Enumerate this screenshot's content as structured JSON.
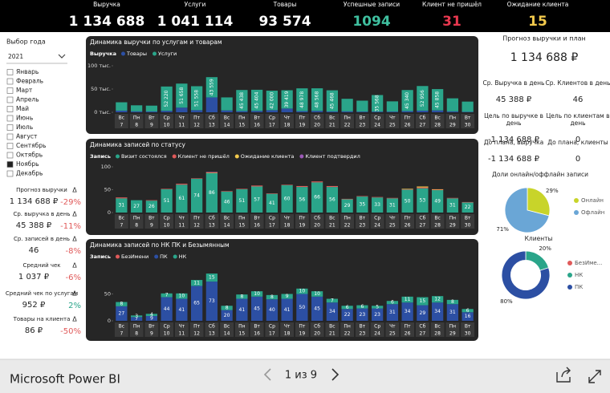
{
  "header": {
    "kpis": [
      {
        "label": "Выручка",
        "value": "1 134 688",
        "color": "#ffffff"
      },
      {
        "label": "Услуги",
        "value": "1 041 114",
        "color": "#ffffff"
      },
      {
        "label": "Товары",
        "value": "93 574",
        "color": "#ffffff"
      },
      {
        "label": "Успешные записи",
        "value": "1094",
        "color": "#3fbf9f"
      },
      {
        "label": "Клиент не пришёл",
        "value": "31",
        "color": "#e8384f"
      },
      {
        "label": "Ожидание клиента",
        "value": "15",
        "color": "#f2c94c"
      }
    ]
  },
  "filters": {
    "year_label": "Выбор года",
    "year": "2021",
    "months": [
      {
        "name": "Январь",
        "checked": false
      },
      {
        "name": "Февраль",
        "checked": false
      },
      {
        "name": "Март",
        "checked": false
      },
      {
        "name": "Апрель",
        "checked": false
      },
      {
        "name": "Май",
        "checked": false
      },
      {
        "name": "Июнь",
        "checked": false
      },
      {
        "name": "Июль",
        "checked": false
      },
      {
        "name": "Август",
        "checked": false
      },
      {
        "name": "Сентябрь",
        "checked": false
      },
      {
        "name": "Октябрь",
        "checked": false
      },
      {
        "name": "Ноябрь",
        "checked": true
      },
      {
        "name": "Декабрь",
        "checked": false
      }
    ]
  },
  "left_metrics": {
    "delta_symbol": "Δ",
    "items": [
      {
        "label": "Прогноз выручки",
        "value": "1 134 688 ₽",
        "delta": "-29%",
        "delta_color": "#e05a5a"
      },
      {
        "label": "Ср. выручка в день",
        "value": "45 388 ₽",
        "delta": "-11%",
        "delta_color": "#e05a5a"
      },
      {
        "label": "Ср. записей в день",
        "value": "46",
        "delta": "-8%",
        "delta_color": "#e05a5a"
      },
      {
        "label": "Средний чек",
        "value": "1 037 ₽",
        "delta": "-6%",
        "delta_color": "#e05a5a"
      },
      {
        "label": "Средний чек по услугам",
        "value": "952 ₽",
        "delta": "2%",
        "delta_color": "#2aa58a"
      },
      {
        "label": "Товары на клиента",
        "value": "86 ₽",
        "delta": "-50%",
        "delta_color": "#e05a5a"
      }
    ]
  },
  "chart_data": [
    {
      "type": "bar",
      "stacked": true,
      "title": "Динамика выручки по услугам и товарам",
      "legend_title": "Выручка",
      "weekdays": [
        "Вс",
        "Пн",
        "Вт",
        "Ср",
        "Чт",
        "Пт",
        "Сб",
        "Вс",
        "Пн",
        "Вт",
        "Ср",
        "Чт",
        "Пт",
        "Сб",
        "Вс",
        "Пн",
        "Вт",
        "Ср",
        "Чт",
        "Пт",
        "Сб",
        "Вс",
        "Пн",
        "Вт"
      ],
      "days": [
        7,
        8,
        9,
        10,
        11,
        12,
        13,
        14,
        15,
        16,
        17,
        18,
        19,
        20,
        21,
        22,
        23,
        24,
        25,
        26,
        27,
        28,
        29,
        30
      ],
      "ylim": [
        0,
        100000
      ],
      "yticks": [
        {
          "value": 0,
          "label": "0 тыс."
        },
        {
          "value": 50000,
          "label": "50 тыс."
        },
        {
          "value": 100000,
          "label": "100 тыс."
        }
      ],
      "series": [
        {
          "name": "Товары",
          "color": "#2c4fa3",
          "values": [
            3500,
            2000,
            1800,
            3200,
            10000,
            4500,
            32000,
            4000,
            2500,
            3000,
            4500,
            8000,
            2500,
            3000,
            1800,
            2000,
            1500,
            1500,
            1500,
            2500,
            3500,
            4000,
            2000,
            1000
          ]
        },
        {
          "name": "Услуги",
          "color": "#2aa58a",
          "values": [
            18000,
            13000,
            12500,
            52220,
            51658,
            51558,
            43559,
            28000,
            45438,
            45404,
            42000,
            39419,
            48978,
            48568,
            45468,
            27000,
            23500,
            35568,
            22000,
            45340,
            52956,
            45858,
            28000,
            22000
          ],
          "value_labels": [
            null,
            null,
            null,
            "52 220",
            "51 658",
            "51 558",
            "43 559",
            null,
            "45 438",
            "45 404",
            "42 000",
            "39 419",
            "48 978",
            "48 568",
            "45 468",
            null,
            null,
            "35 568",
            null,
            "45 340",
            "52 956",
            "45 858",
            null,
            null
          ]
        }
      ]
    },
    {
      "type": "bar",
      "stacked": true,
      "title": "Динамика записей по статусу",
      "legend_title": "Запись",
      "weekdays": [
        "Вс",
        "Пн",
        "Вт",
        "Ср",
        "Чт",
        "Пт",
        "Сб",
        "Вс",
        "Пн",
        "Вт",
        "Ср",
        "Чт",
        "Пт",
        "Сб",
        "Вс",
        "Пн",
        "Вт",
        "Ср",
        "Чт",
        "Пт",
        "Сб",
        "Вс",
        "Пн",
        "Вт"
      ],
      "days": [
        7,
        8,
        9,
        10,
        11,
        12,
        13,
        14,
        15,
        16,
        17,
        18,
        19,
        20,
        21,
        22,
        23,
        24,
        25,
        26,
        27,
        28,
        29,
        30
      ],
      "ylim": [
        0,
        100
      ],
      "yticks": [
        0,
        50,
        100
      ],
      "series": [
        {
          "name": "Визит состоялся",
          "color": "#2aa58a",
          "data_labels": true,
          "values": [
            31,
            27,
            26,
            51,
            61,
            74,
            86,
            46,
            51,
            57,
            41,
            60,
            56,
            66,
            56,
            29,
            35,
            33,
            31,
            50,
            53,
            49,
            31,
            22
          ]
        },
        {
          "name": "Клиент не пришёл",
          "color": "#e05a5a",
          "values": [
            2,
            0,
            1,
            1,
            2,
            1,
            1,
            1,
            1,
            2,
            1,
            1,
            2,
            2,
            2,
            1,
            1,
            1,
            1,
            1,
            2,
            1,
            1,
            1
          ]
        },
        {
          "name": "Ожидание клиента",
          "color": "#f2c94c",
          "values": [
            0,
            0,
            0,
            0,
            0,
            0,
            1,
            0,
            0,
            0,
            0,
            0,
            0,
            0,
            0,
            0,
            0,
            0,
            0,
            1,
            2,
            1,
            0,
            0
          ]
        },
        {
          "name": "Клиент подтвердил",
          "color": "#9b59b6",
          "values": [
            0,
            0,
            0,
            0,
            0,
            0,
            1,
            0,
            0,
            0,
            0,
            0,
            0,
            0,
            0,
            0,
            0,
            0,
            0,
            0,
            0,
            0,
            0,
            0
          ]
        }
      ]
    },
    {
      "type": "bar",
      "stacked": true,
      "title": "Динамика записей по НК ПК и Безымянным",
      "legend_title": "Запись",
      "weekdays": [
        "Вс",
        "Пн",
        "Вт",
        "Ср",
        "Чт",
        "Пт",
        "Сб",
        "Вс",
        "Пн",
        "Вт",
        "Ср",
        "Чт",
        "Пт",
        "Сб",
        "Вс",
        "Пн",
        "Вт",
        "Ср",
        "Чт",
        "Пт",
        "Сб",
        "Вс",
        "Пн",
        "Вт"
      ],
      "days": [
        7,
        8,
        9,
        10,
        11,
        12,
        13,
        14,
        15,
        16,
        17,
        18,
        19,
        20,
        21,
        22,
        23,
        24,
        25,
        26,
        27,
        28,
        29,
        30
      ],
      "ylim": [
        0,
        100
      ],
      "yticks": [
        0,
        50
      ],
      "series": [
        {
          "name": "БезИмени",
          "color": "#e05a5a",
          "values": [
            0,
            0,
            0,
            0,
            0,
            0,
            0,
            0,
            0,
            0,
            0,
            0,
            0,
            0,
            0,
            0,
            0,
            0,
            0,
            0,
            0,
            0,
            0,
            0
          ]
        },
        {
          "name": "ПК",
          "color": "#2c4fa3",
          "data_labels": true,
          "values": [
            27,
            7,
            9,
            44,
            41,
            65,
            73,
            20,
            41,
            45,
            40,
            41,
            50,
            45,
            34,
            22,
            23,
            23,
            31,
            34,
            29,
            34,
            31,
            16
          ]
        },
        {
          "name": "НК",
          "color": "#2aa58a",
          "data_labels": true,
          "values": [
            8,
            3,
            4,
            7,
            10,
            11,
            15,
            8,
            8,
            10,
            8,
            9,
            10,
            10,
            7,
            6,
            6,
            5,
            6,
            11,
            15,
            12,
            8,
            6
          ]
        }
      ]
    },
    {
      "type": "pie",
      "title": "Доли онлайн/оффлайн записи",
      "categories": [
        "Онлайн",
        "Офлайн"
      ],
      "values": [
        29,
        71
      ],
      "value_labels": [
        "29%",
        "71%"
      ],
      "colors": [
        "#c8d42a",
        "#6aa6d6"
      ]
    },
    {
      "type": "pie",
      "hole": 0.62,
      "title": "Клиенты",
      "categories": [
        "БезИме...",
        "НК",
        "ПК"
      ],
      "values": [
        0,
        20,
        80
      ],
      "value_labels": [
        null,
        "20%",
        "80%"
      ],
      "colors": [
        "#e05a5a",
        "#2aa58a",
        "#2c4fa3"
      ]
    }
  ],
  "plan": {
    "title": "Прогноз выручки и план",
    "value": "1 134 688 ₽",
    "items": [
      {
        "label": [
          "Ср. Выручка в день"
        ],
        "value": "45 388 ₽"
      },
      {
        "label": [
          "Ср. Клиентов в день"
        ],
        "value": "46"
      },
      {
        "label": [
          "Цель по выручке в",
          "день"
        ],
        "value": "-1 134 688 ₽"
      },
      {
        "label": [
          "Цель по клиентам в",
          "день"
        ],
        "value": "0"
      },
      {
        "label": [
          "До плана, выручка"
        ],
        "value": "-1 134 688 ₽"
      },
      {
        "label": [
          "До плана, клиенты"
        ],
        "value": "0"
      }
    ]
  },
  "footer": {
    "brand": "Microsoft Power BI",
    "page": "1 из 9"
  }
}
